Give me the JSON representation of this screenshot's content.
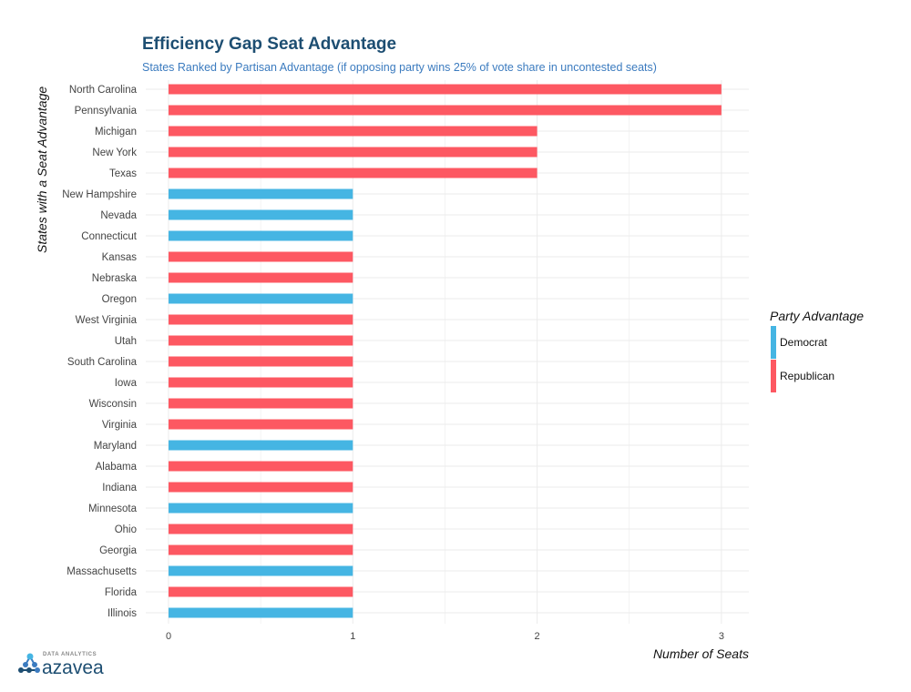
{
  "chart_data": {
    "type": "bar",
    "orientation": "horizontal",
    "title": "Efficiency Gap Seat Advantage",
    "subtitle": "States Ranked by Partisan Advantage (if opposing party wins 25% of vote share in uncontested seats)",
    "xlabel": "Number of Seats",
    "ylabel": "States with a Seat Advantage",
    "xlim": [
      0,
      3.15
    ],
    "xticks": [
      "0",
      "1",
      "2",
      "3"
    ],
    "grid": true,
    "legend": {
      "title": "Party Advantage",
      "placement": "right",
      "entries": [
        {
          "name": "Democrat",
          "color": "#45b5e3"
        },
        {
          "name": "Republican",
          "color": "#fd5862"
        }
      ]
    },
    "categories": [
      "North Carolina",
      "Pennsylvania",
      "Michigan",
      "New York",
      "Texas",
      "New Hampshire",
      "Nevada",
      "Connecticut",
      "Kansas",
      "Nebraska",
      "Oregon",
      "West Virginia",
      "Utah",
      "South Carolina",
      "Iowa",
      "Wisconsin",
      "Virginia",
      "Maryland",
      "Alabama",
      "Indiana",
      "Minnesota",
      "Ohio",
      "Georgia",
      "Massachusetts",
      "Florida",
      "Illinois"
    ],
    "values": [
      3,
      3,
      2,
      2,
      2,
      1,
      1,
      1,
      1,
      1,
      1,
      1,
      1,
      1,
      1,
      1,
      1,
      1,
      1,
      1,
      1,
      1,
      1,
      1,
      1,
      1
    ],
    "party": [
      "Republican",
      "Republican",
      "Republican",
      "Republican",
      "Republican",
      "Democrat",
      "Democrat",
      "Democrat",
      "Republican",
      "Republican",
      "Democrat",
      "Republican",
      "Republican",
      "Republican",
      "Republican",
      "Republican",
      "Republican",
      "Democrat",
      "Republican",
      "Republican",
      "Democrat",
      "Republican",
      "Republican",
      "Democrat",
      "Republican",
      "Democrat"
    ]
  },
  "logo": {
    "small": "DATA ANALYTICS",
    "big": "azavea"
  }
}
